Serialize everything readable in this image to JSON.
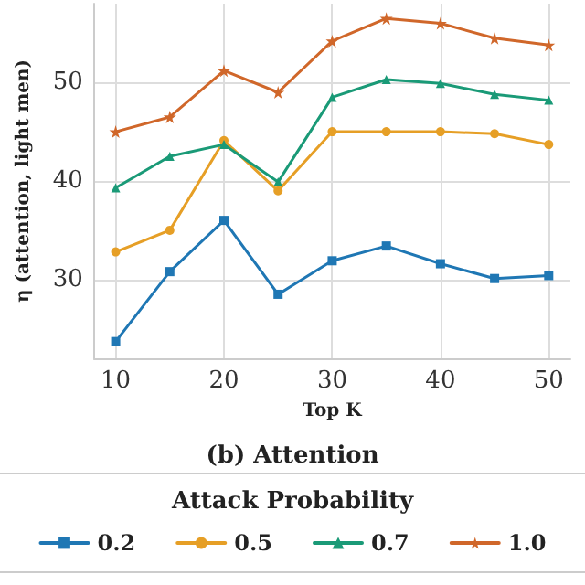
{
  "chart_data": {
    "type": "line",
    "title": "(b) Attention",
    "xlabel": "Top K",
    "ylabel": "η (attention, light men)",
    "legend_title": "Attack Probability",
    "legend": "bottom",
    "grid": true,
    "x": [
      10,
      15,
      20,
      25,
      30,
      35,
      40,
      45,
      50
    ],
    "xlim": [
      8,
      52
    ],
    "xticks": [
      10,
      20,
      30,
      40,
      50
    ],
    "ylim": [
      22,
      58
    ],
    "yticks": [
      30,
      40,
      50
    ],
    "series": [
      {
        "name": "0.2",
        "color": "#1f77b4",
        "marker": "square",
        "values": [
          23.7,
          30.8,
          36.0,
          28.5,
          31.9,
          33.4,
          31.6,
          30.1,
          30.4
        ]
      },
      {
        "name": "0.5",
        "color": "#e69f26",
        "marker": "circle",
        "values": [
          32.8,
          35.0,
          44.1,
          39.0,
          45.0,
          45.0,
          45.0,
          44.8,
          43.7
        ]
      },
      {
        "name": "0.7",
        "color": "#1a9a77",
        "marker": "triangle",
        "values": [
          39.3,
          42.5,
          43.7,
          39.9,
          48.5,
          50.3,
          49.9,
          48.8,
          48.2
        ]
      },
      {
        "name": "1.0",
        "color": "#d0672a",
        "marker": "star",
        "values": [
          45.0,
          46.5,
          51.2,
          49.0,
          54.2,
          56.5,
          56.0,
          54.5,
          53.8
        ]
      }
    ]
  }
}
